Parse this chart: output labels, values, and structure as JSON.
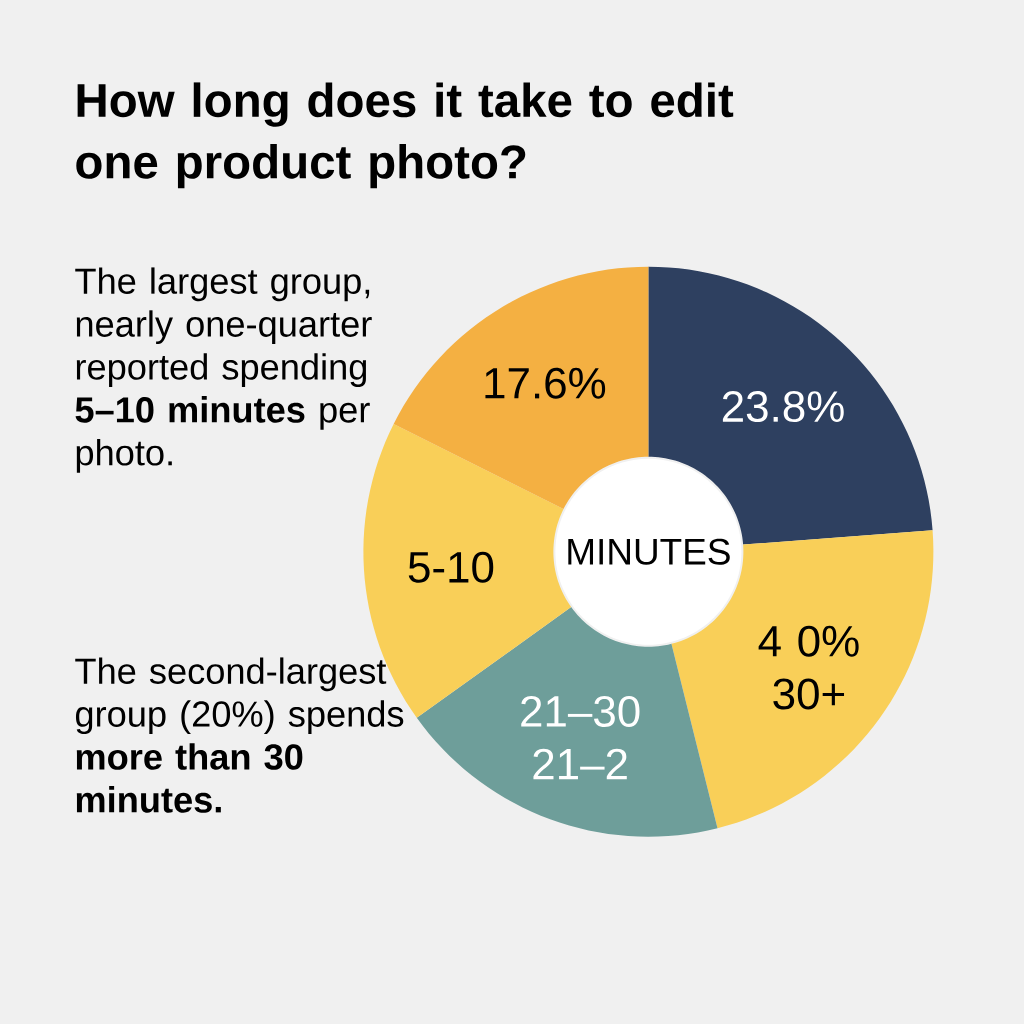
{
  "chart_data": {
    "type": "donut",
    "title": "How long does it take to edit one product photo?",
    "categories": [
      null,
      "4 0% 30+",
      "21–30 21–2",
      "5-10",
      null
    ],
    "values": [
      23.8,
      22.3,
      19.0,
      17.3,
      17.6
    ],
    "value_labels": [
      "23.8%",
      null,
      null,
      null,
      "17.6%"
    ],
    "colors": [
      "#2e4060",
      "#f9cf58",
      "#6e9e9a",
      "#f9cf58",
      "#f4b042"
    ],
    "annotations": [
      "The largest group, nearly one-quarter reported spending **5–10 minutes** per photo.",
      "The second-largest group (20%) spends **more than 30 minutes.**",
      "MINUTES"
    ]
  }
}
